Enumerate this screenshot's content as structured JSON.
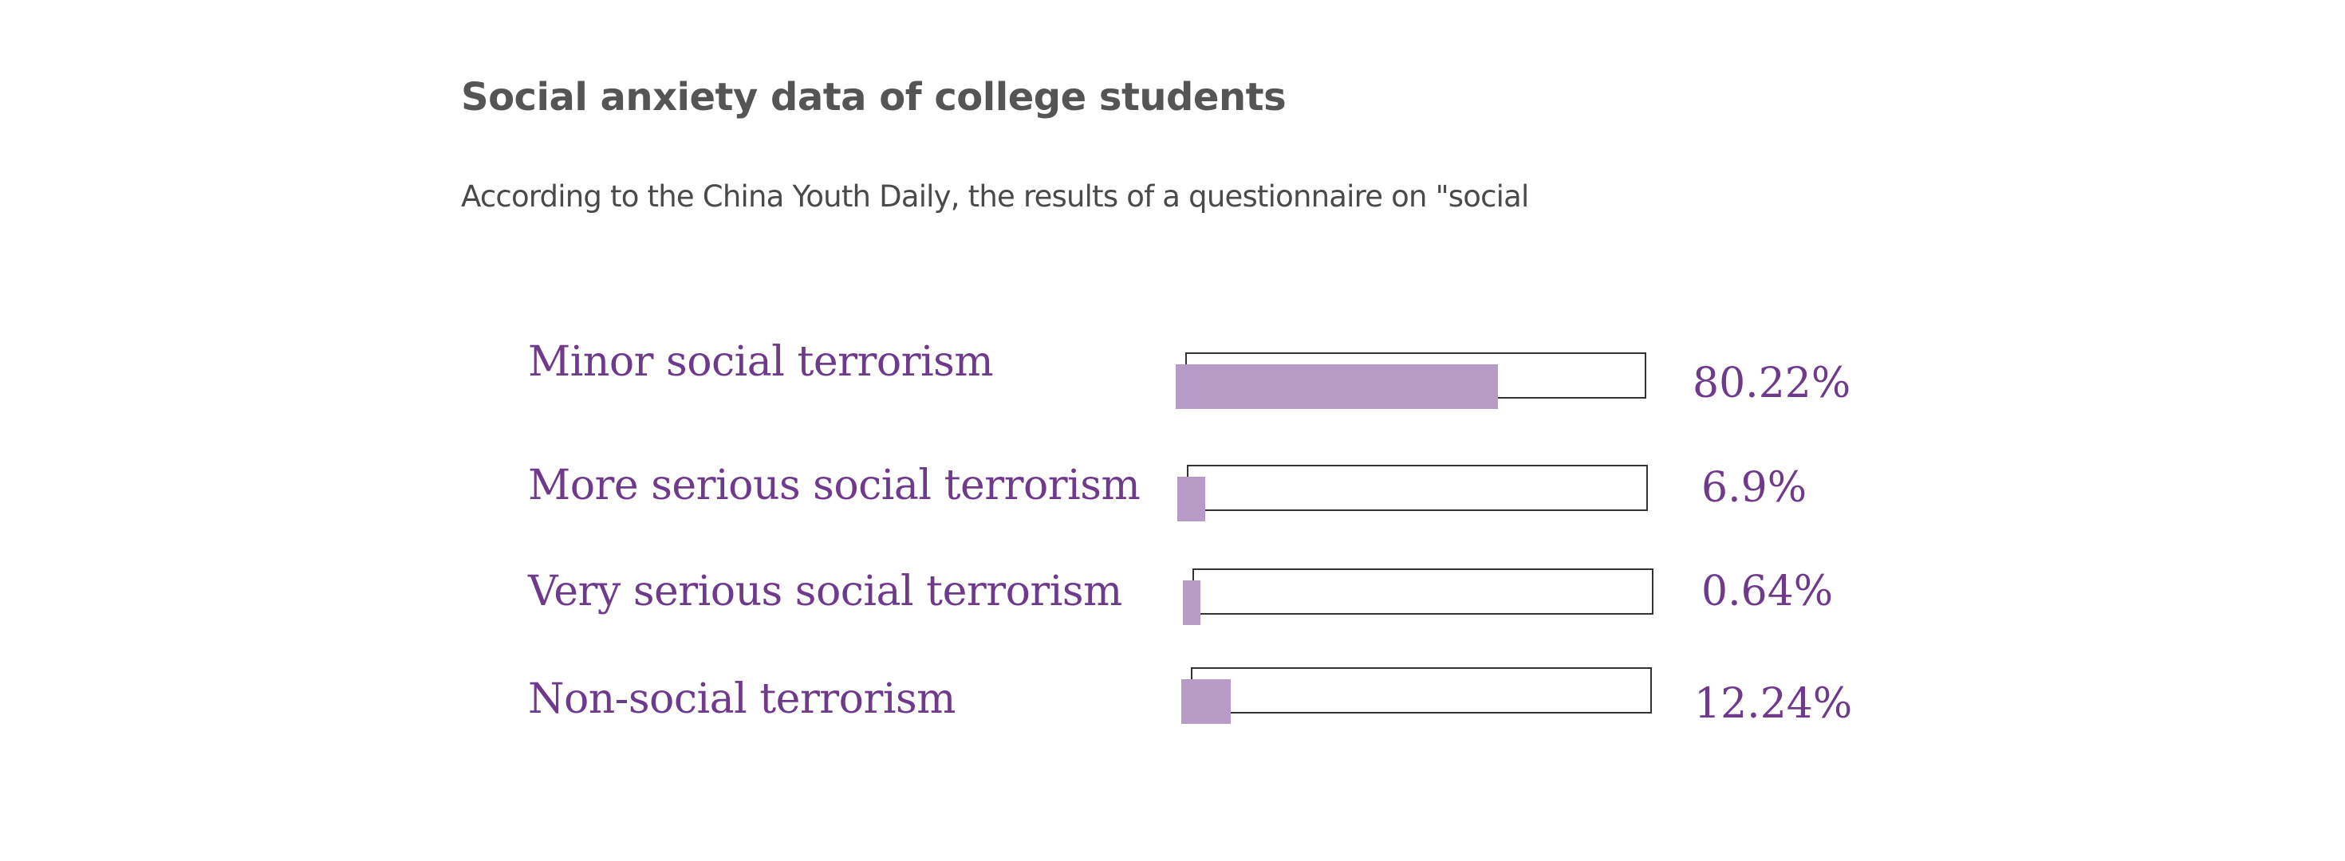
{
  "title": "Social anxiety data of college students",
  "subtitle": "According to the China Youth Daily, the results of a questionnaire on \"social",
  "colors": {
    "label": "#6f3a8c",
    "bar_fill": "#b89ac7",
    "bar_border": "#333333",
    "title": "#555555"
  },
  "chart_data": {
    "type": "bar",
    "orientation": "horizontal",
    "categories": [
      "Minor social terrorism",
      "More serious social terrorism",
      "Very serious social terrorism",
      "Non-social terrorism"
    ],
    "values": [
      80.22,
      6.9,
      0.64,
      12.24
    ],
    "value_labels": [
      "80.22%",
      "6.9%",
      "0.64%",
      "12.24%"
    ],
    "unit": "%",
    "xlim": [
      0,
      100
    ]
  }
}
